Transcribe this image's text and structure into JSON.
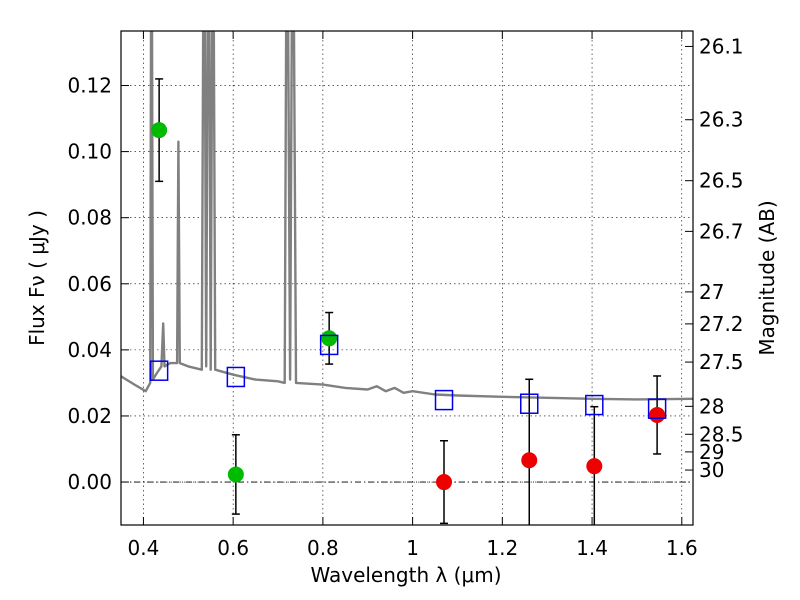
{
  "chart_data": {
    "type": "scatter",
    "xlabel": "Wavelength  λ (μm)",
    "ylabel": "Flux  Fν  ( μJy )",
    "ylabel_right": "Magnitude (AB)",
    "xlim": [
      0.35,
      1.625
    ],
    "ylim": [
      -0.013,
      0.1365
    ],
    "x_ticks": [
      {
        "v": 0.4,
        "label": "0.4"
      },
      {
        "v": 0.6,
        "label": "0.6"
      },
      {
        "v": 0.8,
        "label": "0.8"
      },
      {
        "v": 1.0,
        "label": "1"
      },
      {
        "v": 1.2,
        "label": "1.2"
      },
      {
        "v": 1.4,
        "label": "1.4"
      },
      {
        "v": 1.6,
        "label": "1.6"
      }
    ],
    "y_ticks": [
      {
        "v": 0.0,
        "label": "0.00"
      },
      {
        "v": 0.02,
        "label": "0.02"
      },
      {
        "v": 0.04,
        "label": "0.04"
      },
      {
        "v": 0.06,
        "label": "0.06"
      },
      {
        "v": 0.08,
        "label": "0.08"
      },
      {
        "v": 0.1,
        "label": "0.10"
      },
      {
        "v": 0.12,
        "label": "0.12"
      }
    ],
    "mag_ticks": [
      {
        "v": 26.1,
        "label": "26.1"
      },
      {
        "v": 26.3,
        "label": "26.3"
      },
      {
        "v": 26.5,
        "label": "26.5"
      },
      {
        "v": 26.7,
        "label": "26.7"
      },
      {
        "v": 27,
        "label": "27"
      },
      {
        "v": 27.2,
        "label": "27.2"
      },
      {
        "v": 27.5,
        "label": "27.5"
      },
      {
        "v": 28,
        "label": "28"
      },
      {
        "v": 28.5,
        "label": "28.5"
      },
      {
        "v": 29,
        "label": "29"
      },
      {
        "v": 30,
        "label": "30"
      }
    ],
    "grid": true,
    "series": [
      {
        "marker": "circle",
        "color": "#00bb00",
        "points": [
          {
            "x": 0.435,
            "y": 0.1065,
            "err": 0.0155
          },
          {
            "x": 0.606,
            "y": 0.0023,
            "err": 0.012
          },
          {
            "x": 0.814,
            "y": 0.0435,
            "err": 0.0078
          }
        ]
      },
      {
        "marker": "circle",
        "color": "#ee0000",
        "points": [
          {
            "x": 1.07,
            "y": 0.0,
            "err": 0.0125
          },
          {
            "x": 1.26,
            "y": 0.0066,
            "err": 0.0245
          },
          {
            "x": 1.405,
            "y": 0.0048,
            "err": 0.018
          },
          {
            "x": 1.545,
            "y": 0.0203,
            "err": 0.0118
          }
        ]
      },
      {
        "marker": "square",
        "color": "#0000ee",
        "points": [
          {
            "x": 0.435,
            "y": 0.0337
          },
          {
            "x": 0.606,
            "y": 0.0318
          },
          {
            "x": 0.814,
            "y": 0.0415
          },
          {
            "x": 1.07,
            "y": 0.0248
          },
          {
            "x": 1.26,
            "y": 0.0237
          },
          {
            "x": 1.405,
            "y": 0.0233
          },
          {
            "x": 1.545,
            "y": 0.0222
          }
        ]
      }
    ],
    "spectrum": {
      "color": "#808080",
      "points": [
        [
          0.35,
          0.032
        ],
        [
          0.38,
          0.0295
        ],
        [
          0.405,
          0.0275
        ],
        [
          0.415,
          0.03
        ],
        [
          0.418,
          0.2
        ],
        [
          0.421,
          0.031
        ],
        [
          0.43,
          0.033
        ],
        [
          0.44,
          0.035
        ],
        [
          0.444,
          0.048
        ],
        [
          0.447,
          0.035
        ],
        [
          0.46,
          0.036
        ],
        [
          0.475,
          0.036
        ],
        [
          0.478,
          0.103
        ],
        [
          0.481,
          0.036
        ],
        [
          0.5,
          0.035
        ],
        [
          0.53,
          0.034
        ],
        [
          0.535,
          0.2
        ],
        [
          0.54,
          0.035
        ],
        [
          0.545,
          0.2
        ],
        [
          0.55,
          0.034
        ],
        [
          0.555,
          0.2
        ],
        [
          0.56,
          0.034
        ],
        [
          0.6,
          0.0325
        ],
        [
          0.65,
          0.031
        ],
        [
          0.7,
          0.0305
        ],
        [
          0.715,
          0.03
        ],
        [
          0.72,
          0.2
        ],
        [
          0.727,
          0.031
        ],
        [
          0.733,
          0.2
        ],
        [
          0.74,
          0.03
        ],
        [
          0.8,
          0.0295
        ],
        [
          0.85,
          0.0285
        ],
        [
          0.9,
          0.028
        ],
        [
          0.92,
          0.029
        ],
        [
          0.94,
          0.0275
        ],
        [
          0.96,
          0.0285
        ],
        [
          0.98,
          0.027
        ],
        [
          1.0,
          0.0275
        ],
        [
          1.05,
          0.0265
        ],
        [
          1.1,
          0.0262
        ],
        [
          1.2,
          0.0258
        ],
        [
          1.3,
          0.0255
        ],
        [
          1.4,
          0.0252
        ],
        [
          1.5,
          0.025
        ],
        [
          1.625,
          0.0252
        ]
      ]
    }
  }
}
